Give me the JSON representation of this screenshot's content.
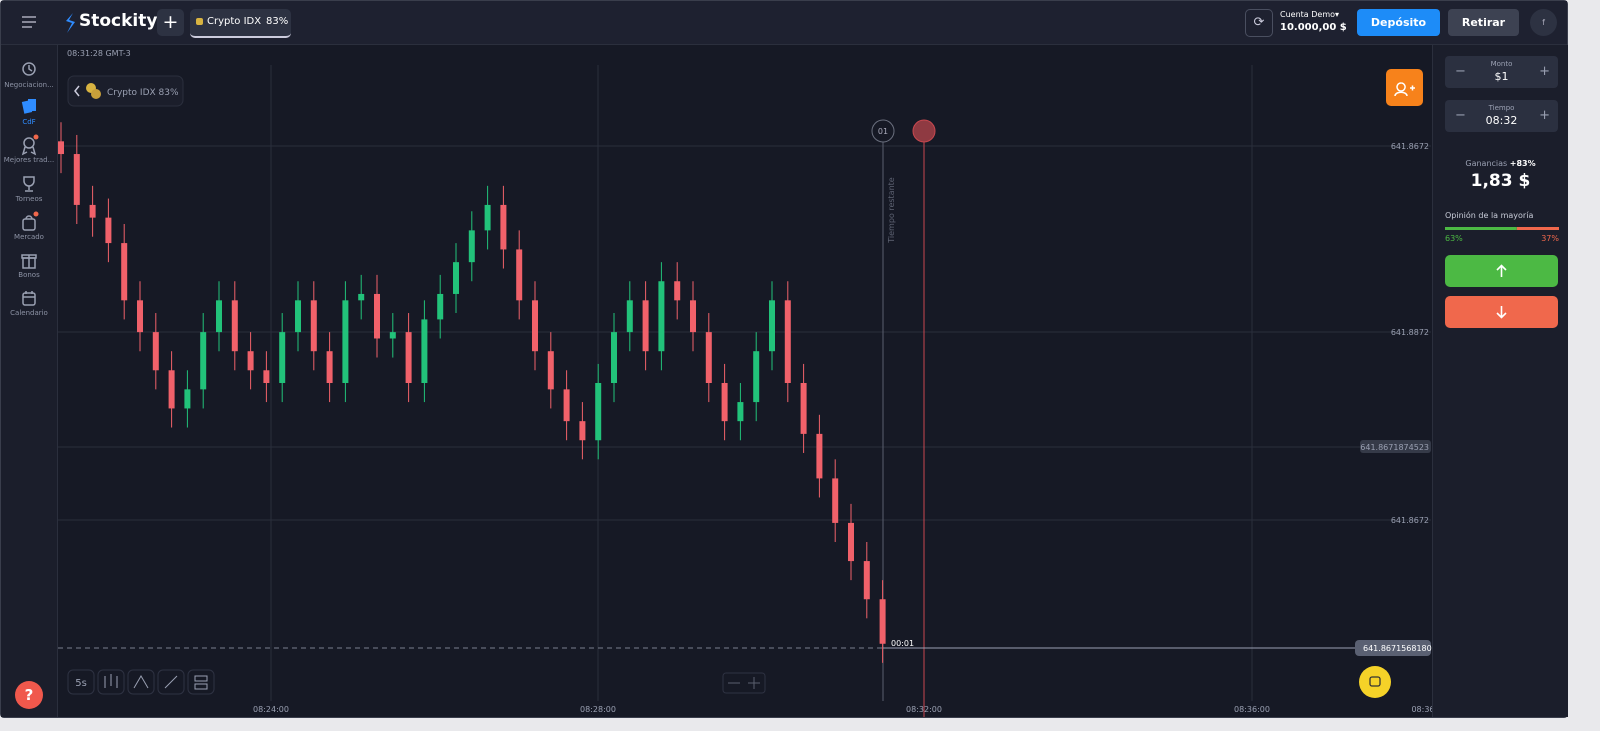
{
  "top_bar": {
    "brand": "Stockity",
    "asset": "Crypto IDX",
    "asset_payout": "83%",
    "account_label": "Cuenta Demo",
    "balance": "10.000,00 $",
    "deposit": "Depósito",
    "withdraw": "Retirar",
    "avatar": "f"
  },
  "sidebar": [
    "Negociacion...",
    "CdF",
    "Mejores trad...",
    "Torneos",
    "Mercado",
    "Bonos",
    "Calendario"
  ],
  "chart": {
    "clock": "08:31:28 GMT-3",
    "asset_chip": "Crypto IDX 83%",
    "price_labels": [
      "641.8672",
      "641.8872",
      "641.8671874523",
      "641.8672"
    ],
    "current_price": "641.8671568180",
    "countdown": "00:01",
    "trade_marker": "01",
    "remaining_label": "Tiempo restante",
    "time_labels": [
      "08:24:00",
      "08:28:00",
      "08:32:00",
      "08:36:00",
      "08:36"
    ],
    "interval": "5s",
    "ylim": [
      0,
      100
    ],
    "up_color": "#22c27a",
    "down_color": "#f0616a",
    "candles": {
      "open": [
        88,
        86,
        78,
        76,
        72,
        63,
        58,
        52,
        46,
        49,
        58,
        63,
        55,
        52,
        50,
        58,
        63,
        55,
        50,
        63,
        64,
        57,
        58,
        50,
        60,
        64,
        69,
        74,
        78,
        71,
        63,
        55,
        49,
        44,
        41,
        50,
        58,
        63,
        55,
        66,
        63,
        58,
        50,
        44,
        47,
        55,
        63,
        50,
        42,
        35,
        28,
        22,
        16
      ],
      "high": [
        91,
        89,
        81,
        79,
        75,
        66,
        61,
        55,
        52,
        61,
        66,
        66,
        58,
        55,
        61,
        66,
        66,
        58,
        66,
        67,
        67,
        61,
        61,
        63,
        67,
        72,
        77,
        81,
        81,
        74,
        66,
        58,
        52,
        47,
        53,
        61,
        66,
        66,
        69,
        69,
        66,
        61,
        53,
        50,
        58,
        66,
        66,
        53,
        45,
        38,
        31,
        25,
        19
      ],
      "low": [
        83,
        75,
        73,
        69,
        60,
        55,
        49,
        43,
        43,
        46,
        55,
        52,
        49,
        47,
        47,
        55,
        52,
        47,
        47,
        60,
        54,
        54,
        47,
        47,
        57,
        61,
        66,
        71,
        68,
        60,
        52,
        46,
        41,
        38,
        38,
        47,
        55,
        52,
        52,
        60,
        55,
        47,
        41,
        41,
        44,
        52,
        47,
        39,
        32,
        25,
        19,
        13,
        6
      ],
      "close": [
        86,
        78,
        76,
        72,
        63,
        58,
        52,
        46,
        49,
        58,
        63,
        55,
        52,
        50,
        58,
        63,
        55,
        50,
        63,
        64,
        57,
        58,
        50,
        60,
        64,
        69,
        74,
        78,
        71,
        63,
        55,
        49,
        44,
        41,
        50,
        58,
        63,
        55,
        66,
        63,
        58,
        50,
        44,
        47,
        55,
        63,
        50,
        42,
        35,
        28,
        22,
        16,
        9
      ]
    }
  },
  "trade_panel": {
    "amount_label": "Monto",
    "amount": "$1",
    "time_label": "Tiempo",
    "time": "08:32",
    "payout_label": "Ganancias",
    "payout": "+83%",
    "profit": "1,83 $",
    "majority_label": "Opinión de la mayoría",
    "majority": {
      "values": [
        63,
        37
      ],
      "value_labels": [
        "63%",
        "37%"
      ],
      "colors": [
        "#4cb944",
        "#f0684c"
      ]
    }
  }
}
